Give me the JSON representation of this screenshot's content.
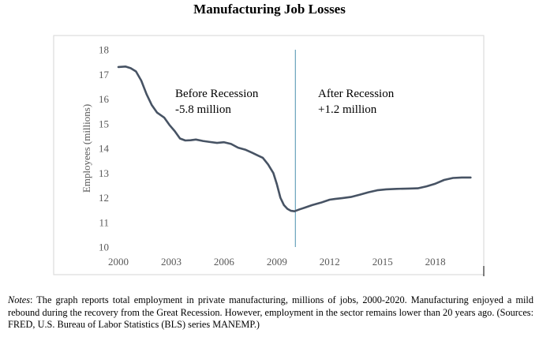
{
  "chart_data": {
    "type": "line",
    "title": "Manufacturing Job Losses",
    "xlabel": "",
    "ylabel": "Employees (millions)",
    "xlim": [
      2000,
      2020.3
    ],
    "ylim": [
      10,
      18
    ],
    "xticks": [
      2000,
      2003,
      2006,
      2009,
      2012,
      2015,
      2018
    ],
    "yticks": [
      10,
      11,
      12,
      13,
      14,
      15,
      16,
      17,
      18
    ],
    "grid": false,
    "series": [
      {
        "name": "Manufacturing employment",
        "color": "#475364",
        "x": [
          2000.0,
          2000.4,
          2000.7,
          2001.0,
          2001.3,
          2001.6,
          2001.9,
          2002.2,
          2002.6,
          2002.9,
          2003.2,
          2003.5,
          2003.8,
          2004.1,
          2004.4,
          2004.8,
          2005.2,
          2005.6,
          2006.0,
          2006.4,
          2006.8,
          2007.2,
          2007.6,
          2007.9,
          2008.2,
          2008.5,
          2008.8,
          2009.0,
          2009.2,
          2009.4,
          2009.6,
          2009.8,
          2010.0,
          2010.3,
          2010.6,
          2011.0,
          2011.5,
          2012.0,
          2012.3,
          2012.7,
          2013.2,
          2013.7,
          2014.2,
          2014.7,
          2015.2,
          2015.8,
          2016.5,
          2017.0,
          2017.5,
          2018.0,
          2018.5,
          2019.0,
          2019.5,
          2020.0
        ],
        "values": [
          17.3,
          17.32,
          17.25,
          17.12,
          16.75,
          16.2,
          15.75,
          15.45,
          15.25,
          14.95,
          14.7,
          14.4,
          14.32,
          14.33,
          14.36,
          14.3,
          14.26,
          14.22,
          14.25,
          14.18,
          14.03,
          13.95,
          13.82,
          13.72,
          13.62,
          13.35,
          13.0,
          12.55,
          12.0,
          11.7,
          11.55,
          11.47,
          11.45,
          11.53,
          11.6,
          11.7,
          11.8,
          11.92,
          11.95,
          11.98,
          12.03,
          12.12,
          12.22,
          12.3,
          12.34,
          12.36,
          12.37,
          12.38,
          12.46,
          12.57,
          12.72,
          12.8,
          12.82,
          12.82
        ]
      }
    ],
    "markers": [
      {
        "name": "Recession divider",
        "x": 2010.05,
        "color": "#4a8fae"
      }
    ],
    "annotations": [
      {
        "id": "before",
        "lines": [
          "Before Recession",
          "-5.8 million"
        ]
      },
      {
        "id": "after",
        "lines": [
          "After Recession",
          "+1.2 million"
        ]
      }
    ]
  },
  "notes": {
    "label": "Notes",
    "text": ": The graph reports total employment in private manufacturing, millions of jobs, 2000-2020. Manufacturing enjoyed a mild rebound during the recovery from the Great Recession. However, employment in the sector remains lower than 20 years ago. (Sources: FRED, U.S. Bureau of Labor Statistics (BLS) series MANEMP.)"
  }
}
